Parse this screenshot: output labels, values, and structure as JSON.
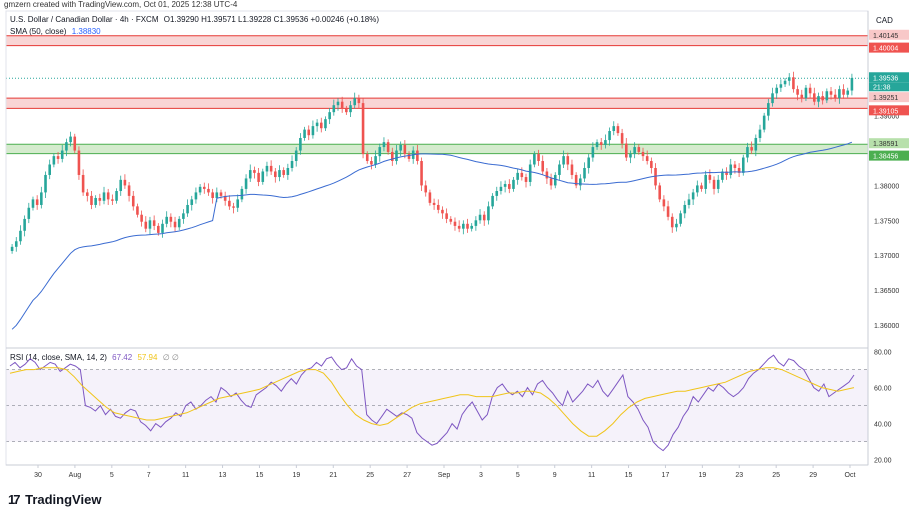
{
  "header": {
    "credit": "gmzern created with TradingView.com, Oct 01, 2025 12:38 UTC-4",
    "symbol": "U.S. Dollar / Canadian Dollar · 4h · FXCM",
    "ohlc": "O1.39290 H1.39571 L1.39228 C1.39536 +0.00246 (+0.18%)",
    "sma_label": "SMA (50, close)",
    "sma_value": "1.38830",
    "currency": "CAD"
  },
  "rsi_header": {
    "label": "RSI (14, close, SMA, 14, 2)",
    "rsi_value": "67.42",
    "sma_value": "57.94",
    "extra": "∅ ∅"
  },
  "price_labels": {
    "upper_zone_top": "1.40145",
    "upper_zone_bottom": "1.40004",
    "current_price": "1.39536",
    "countdown": "21:38",
    "mid_zone_top": "1.39251",
    "mid_zone_bottom": "1.39105",
    "lower_zone_top": "1.38591",
    "lower_zone_bottom": "1.38456"
  },
  "brand": {
    "logo_text": "TradingView",
    "logo_mark": "17"
  },
  "colors": {
    "up": "#26a69a",
    "down": "#ef5350",
    "sma": "#3a6bd1",
    "rsi": "#7e57c2",
    "rsi_sma": "#f0c419",
    "resistance_fill": "#f8d0d0",
    "support_fill": "#cfe9c8"
  },
  "chart_data": {
    "type": "candlestick",
    "timeframe": "4h",
    "x_tick_labels": [
      "30",
      "Aug",
      "5",
      "7",
      "11",
      "13",
      "15",
      "19",
      "21",
      "25",
      "27",
      "Sep",
      "3",
      "5",
      "9",
      "11",
      "15",
      "17",
      "19",
      "23",
      "25",
      "29",
      "Oct"
    ],
    "y_tick_labels": [
      "1.40000",
      "1.39000",
      "1.38000",
      "1.37500",
      "1.37000",
      "1.36500",
      "1.36000"
    ],
    "ylim": [
      1.3567,
      1.405
    ],
    "rsi_ylim": [
      17,
      82
    ],
    "rsi_tick_labels": [
      "80.00",
      "60.00",
      "40.00",
      "20.00"
    ],
    "rsi_levels": [
      70,
      50,
      30
    ],
    "zones": [
      {
        "top": 1.40145,
        "bottom": 1.40004,
        "kind": "resistance"
      },
      {
        "top": 1.39251,
        "bottom": 1.39105,
        "kind": "resistance"
      },
      {
        "top": 1.38591,
        "bottom": 1.38456,
        "kind": "support"
      }
    ],
    "current_price": 1.39536,
    "close_series": [
      1.3712,
      1.372,
      1.3735,
      1.3752,
      1.3768,
      1.378,
      1.3772,
      1.379,
      1.3815,
      1.383,
      1.3842,
      1.3838,
      1.385,
      1.3862,
      1.387,
      1.385,
      1.3815,
      1.379,
      1.3785,
      1.3772,
      1.3782,
      1.3778,
      1.379,
      1.378,
      1.3778,
      1.3792,
      1.3808,
      1.38,
      1.3785,
      1.377,
      1.3758,
      1.3748,
      1.3738,
      1.375,
      1.3742,
      1.3732,
      1.3745,
      1.3755,
      1.3748,
      1.374,
      1.3752,
      1.376,
      1.3772,
      1.378,
      1.379,
      1.3798,
      1.3795,
      1.379,
      1.3782,
      1.379,
      1.3785,
      1.3778,
      1.377,
      1.3768,
      1.378,
      1.3795,
      1.381,
      1.3822,
      1.3818,
      1.3805,
      1.382,
      1.3828,
      1.382,
      1.3812,
      1.3822,
      1.3815,
      1.3825,
      1.3835,
      1.385,
      1.3868,
      1.388,
      1.3872,
      1.3885,
      1.389,
      1.3882,
      1.3895,
      1.3905,
      1.3915,
      1.392,
      1.391,
      1.3905,
      1.3915,
      1.3925,
      1.3918,
      1.3845,
      1.3835,
      1.383,
      1.3842,
      1.3855,
      1.3862,
      1.3848,
      1.3835,
      1.385,
      1.3858,
      1.3845,
      1.3838,
      1.385,
      1.3835,
      1.38,
      1.379,
      1.3775,
      1.3772,
      1.3765,
      1.376,
      1.3752,
      1.3748,
      1.3742,
      1.3738,
      1.3745,
      1.3738,
      1.3742,
      1.375,
      1.3758,
      1.375,
      1.377,
      1.3785,
      1.3792,
      1.3798,
      1.3802,
      1.3795,
      1.3808,
      1.3818,
      1.3812,
      1.3805,
      1.383,
      1.3845,
      1.3835,
      1.382,
      1.381,
      1.38,
      1.3815,
      1.383,
      1.3842,
      1.383,
      1.3815,
      1.38,
      1.381,
      1.3825,
      1.384,
      1.3855,
      1.3862,
      1.3858,
      1.3865,
      1.3878,
      1.3885,
      1.3875,
      1.386,
      1.384,
      1.3845,
      1.3855,
      1.3848,
      1.3842,
      1.3835,
      1.3825,
      1.38,
      1.378,
      1.377,
      1.3755,
      1.374,
      1.3745,
      1.376,
      1.3772,
      1.378,
      1.379,
      1.38,
      1.3795,
      1.3815,
      1.3808,
      1.3795,
      1.3808,
      1.382,
      1.3815,
      1.383,
      1.3825,
      1.3818,
      1.384,
      1.3855,
      1.385,
      1.3868,
      1.388,
      1.39,
      1.3918,
      1.3932,
      1.394,
      1.3945,
      1.395,
      1.3955,
      1.3938,
      1.393,
      1.3925,
      1.394,
      1.3932,
      1.392,
      1.3928,
      1.3922,
      1.3935,
      1.393,
      1.3925,
      1.3938,
      1.393,
      1.3936,
      1.3954
    ],
    "rsi_series": [
      72,
      74,
      71,
      73,
      76,
      74,
      70,
      72,
      74,
      73,
      69,
      71,
      73,
      72,
      70,
      50,
      49,
      47,
      50,
      45,
      48,
      44,
      43,
      46,
      48,
      47,
      41,
      39,
      36,
      40,
      38,
      41,
      43,
      46,
      44,
      50,
      52,
      48,
      50,
      53,
      55,
      52,
      60,
      58,
      55,
      57,
      53,
      50,
      49,
      56,
      58,
      60,
      63,
      61,
      58,
      62,
      65,
      62,
      67,
      70,
      71,
      74,
      72,
      76,
      77,
      73,
      70,
      71,
      76,
      72,
      70,
      45,
      42,
      40,
      44,
      48,
      46,
      44,
      46,
      45,
      43,
      35,
      32,
      30,
      28,
      29,
      32,
      35,
      40,
      37,
      45,
      49,
      52,
      47,
      42,
      45,
      55,
      60,
      62,
      58,
      56,
      58,
      55,
      60,
      56,
      62,
      64,
      60,
      57,
      53,
      50,
      58,
      52,
      55,
      58,
      62,
      60,
      64,
      58,
      55,
      59,
      63,
      67,
      55,
      52,
      48,
      42,
      38,
      30,
      27,
      25,
      28,
      34,
      38,
      44,
      48,
      55,
      52,
      56,
      60,
      58,
      62,
      60,
      57,
      55,
      57,
      60,
      65,
      68,
      70,
      73,
      76,
      78,
      74,
      72,
      76,
      75,
      72,
      70,
      65,
      60,
      58,
      62,
      55,
      57,
      59,
      61,
      63,
      67
    ],
    "rsi_sma_series": [
      68,
      69,
      70,
      70,
      71,
      71,
      71,
      70,
      66,
      61,
      57,
      53,
      49,
      46,
      45,
      44,
      43,
      42,
      42,
      43,
      44,
      45,
      46,
      48,
      50,
      52,
      54,
      55,
      56,
      57,
      58,
      59,
      61,
      63,
      65,
      67,
      69,
      70,
      70,
      68,
      63,
      56,
      50,
      45,
      42,
      40,
      39,
      40,
      43,
      46,
      49,
      51,
      52,
      53,
      54,
      55,
      56,
      56,
      55,
      55,
      55,
      56,
      57,
      57,
      58,
      58,
      57,
      54,
      50,
      45,
      40,
      36,
      33,
      33,
      36,
      40,
      45,
      49,
      52,
      54,
      55,
      56,
      57,
      58,
      58,
      59,
      60,
      61,
      62,
      63,
      65,
      67,
      69,
      70,
      71,
      71,
      70,
      68,
      66,
      64,
      62,
      60,
      59,
      58,
      59,
      60
    ]
  }
}
